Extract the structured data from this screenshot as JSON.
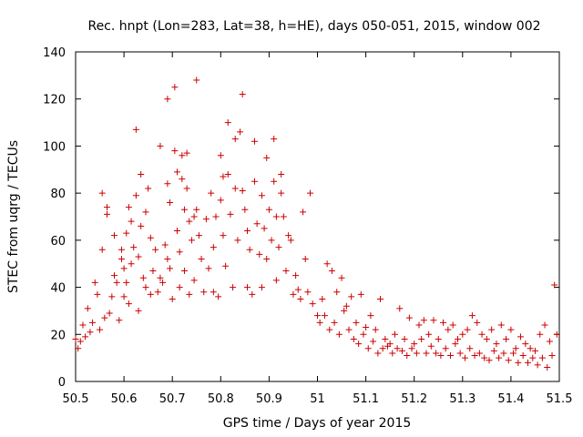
{
  "chart_data": {
    "type": "scatter",
    "title": "Rec. hnpt (Lon=283, Lat=38, h=HE), days 050-051, 2015, window 002",
    "xlabel": "GPS time / Days of year 2015",
    "ylabel": "STEC from uqrg / TECUs",
    "xlim": [
      50.5,
      51.5
    ],
    "ylim": [
      0,
      140
    ],
    "x_ticks": [
      50.5,
      50.6,
      50.7,
      50.8,
      50.9,
      51.0,
      51.1,
      51.2,
      51.3,
      51.4,
      51.5
    ],
    "x_tick_labels": [
      "50.5",
      "50.6",
      "50.7",
      "50.8",
      "50.9",
      "51",
      "51.1",
      "51.2",
      "51.3",
      "51.4",
      "51.5"
    ],
    "y_ticks": [
      0,
      20,
      40,
      60,
      80,
      100,
      120,
      140
    ],
    "y_tick_labels": [
      "0",
      "20",
      "40",
      "60",
      "80",
      "100",
      "120",
      "140"
    ],
    "marker": "plus",
    "color": "#cc0000",
    "series": [
      {
        "name": "STEC",
        "points": [
          [
            50.5,
            18
          ],
          [
            50.505,
            14
          ],
          [
            50.51,
            17
          ],
          [
            50.515,
            24
          ],
          [
            50.52,
            19
          ],
          [
            50.525,
            31
          ],
          [
            50.53,
            21
          ],
          [
            50.535,
            25
          ],
          [
            50.54,
            42
          ],
          [
            50.545,
            37
          ],
          [
            50.55,
            22
          ],
          [
            50.555,
            80
          ],
          [
            50.555,
            56
          ],
          [
            50.56,
            27
          ],
          [
            50.565,
            74
          ],
          [
            50.565,
            71
          ],
          [
            50.57,
            29
          ],
          [
            50.575,
            36
          ],
          [
            50.58,
            62
          ],
          [
            50.58,
            45
          ],
          [
            50.585,
            42
          ],
          [
            50.59,
            26
          ],
          [
            50.595,
            56
          ],
          [
            50.595,
            52
          ],
          [
            50.6,
            48
          ],
          [
            50.6,
            36
          ],
          [
            50.605,
            63
          ],
          [
            50.605,
            42
          ],
          [
            50.61,
            74
          ],
          [
            50.61,
            33
          ],
          [
            50.615,
            68
          ],
          [
            50.615,
            50
          ],
          [
            50.62,
            57
          ],
          [
            50.625,
            107
          ],
          [
            50.625,
            79
          ],
          [
            50.63,
            53
          ],
          [
            50.63,
            30
          ],
          [
            50.635,
            88
          ],
          [
            50.635,
            66
          ],
          [
            50.64,
            44
          ],
          [
            50.645,
            72
          ],
          [
            50.645,
            40
          ],
          [
            50.65,
            82
          ],
          [
            50.655,
            61
          ],
          [
            50.655,
            37
          ],
          [
            50.66,
            47
          ],
          [
            50.665,
            56
          ],
          [
            50.67,
            38
          ],
          [
            50.675,
            100
          ],
          [
            50.675,
            44
          ],
          [
            50.68,
            42
          ],
          [
            50.685,
            58
          ],
          [
            50.69,
            120
          ],
          [
            50.69,
            84
          ],
          [
            50.69,
            52
          ],
          [
            50.695,
            76
          ],
          [
            50.695,
            48
          ],
          [
            50.7,
            35
          ],
          [
            50.705,
            125
          ],
          [
            50.705,
            98
          ],
          [
            50.71,
            89
          ],
          [
            50.71,
            64
          ],
          [
            50.715,
            55
          ],
          [
            50.715,
            40
          ],
          [
            50.72,
            96
          ],
          [
            50.72,
            86
          ],
          [
            50.725,
            73
          ],
          [
            50.725,
            47
          ],
          [
            50.73,
            97
          ],
          [
            50.73,
            82
          ],
          [
            50.735,
            68
          ],
          [
            50.735,
            37
          ],
          [
            50.74,
            60
          ],
          [
            50.745,
            70
          ],
          [
            50.745,
            43
          ],
          [
            50.75,
            128
          ],
          [
            50.75,
            73
          ],
          [
            50.755,
            62
          ],
          [
            50.76,
            52
          ],
          [
            50.765,
            38
          ],
          [
            50.77,
            69
          ],
          [
            50.775,
            48
          ],
          [
            50.78,
            80
          ],
          [
            50.785,
            57
          ],
          [
            50.785,
            38
          ],
          [
            50.79,
            70
          ],
          [
            50.795,
            36
          ],
          [
            50.8,
            96
          ],
          [
            50.8,
            77
          ],
          [
            50.805,
            87
          ],
          [
            50.805,
            62
          ],
          [
            50.81,
            49
          ],
          [
            50.815,
            110
          ],
          [
            50.815,
            88
          ],
          [
            50.82,
            71
          ],
          [
            50.825,
            40
          ],
          [
            50.83,
            103
          ],
          [
            50.83,
            82
          ],
          [
            50.835,
            60
          ],
          [
            50.84,
            106
          ],
          [
            50.845,
            122
          ],
          [
            50.845,
            81
          ],
          [
            50.85,
            73
          ],
          [
            50.855,
            64
          ],
          [
            50.855,
            40
          ],
          [
            50.86,
            56
          ],
          [
            50.865,
            37
          ],
          [
            50.87,
            102
          ],
          [
            50.87,
            85
          ],
          [
            50.875,
            67
          ],
          [
            50.88,
            54
          ],
          [
            50.885,
            79
          ],
          [
            50.885,
            40
          ],
          [
            50.89,
            65
          ],
          [
            50.895,
            95
          ],
          [
            50.895,
            52
          ],
          [
            50.9,
            73
          ],
          [
            50.905,
            60
          ],
          [
            50.91,
            103
          ],
          [
            50.91,
            85
          ],
          [
            50.915,
            70
          ],
          [
            50.915,
            43
          ],
          [
            50.92,
            57
          ],
          [
            50.925,
            88
          ],
          [
            50.925,
            80
          ],
          [
            50.93,
            70
          ],
          [
            50.935,
            47
          ],
          [
            50.94,
            62
          ],
          [
            50.945,
            60
          ],
          [
            50.95,
            37
          ],
          [
            50.955,
            45
          ],
          [
            50.96,
            39
          ],
          [
            50.965,
            35
          ],
          [
            50.97,
            72
          ],
          [
            50.975,
            52
          ],
          [
            50.98,
            38
          ],
          [
            50.985,
            80
          ],
          [
            50.99,
            33
          ],
          [
            51.0,
            28
          ],
          [
            51.005,
            25
          ],
          [
            51.01,
            35
          ],
          [
            51.015,
            28
          ],
          [
            51.02,
            50
          ],
          [
            51.025,
            22
          ],
          [
            51.03,
            47
          ],
          [
            51.035,
            25
          ],
          [
            51.04,
            38
          ],
          [
            51.045,
            20
          ],
          [
            51.05,
            44
          ],
          [
            51.055,
            30
          ],
          [
            51.06,
            32
          ],
          [
            51.065,
            22
          ],
          [
            51.07,
            36
          ],
          [
            51.075,
            18
          ],
          [
            51.08,
            25
          ],
          [
            51.085,
            16
          ],
          [
            51.09,
            37
          ],
          [
            51.095,
            20
          ],
          [
            51.1,
            23
          ],
          [
            51.105,
            14
          ],
          [
            51.11,
            28
          ],
          [
            51.115,
            17
          ],
          [
            51.12,
            22
          ],
          [
            51.125,
            12
          ],
          [
            51.13,
            35
          ],
          [
            51.135,
            14
          ],
          [
            51.14,
            18
          ],
          [
            51.145,
            15
          ],
          [
            51.15,
            16
          ],
          [
            51.155,
            12
          ],
          [
            51.16,
            20
          ],
          [
            51.165,
            14
          ],
          [
            51.17,
            31
          ],
          [
            51.175,
            13
          ],
          [
            51.18,
            18
          ],
          [
            51.185,
            11
          ],
          [
            51.19,
            27
          ],
          [
            51.195,
            14
          ],
          [
            51.2,
            16
          ],
          [
            51.205,
            12
          ],
          [
            51.21,
            24
          ],
          [
            51.215,
            18
          ],
          [
            51.22,
            26
          ],
          [
            51.225,
            12
          ],
          [
            51.23,
            20
          ],
          [
            51.235,
            15
          ],
          [
            51.24,
            26
          ],
          [
            51.245,
            12
          ],
          [
            51.25,
            18
          ],
          [
            51.255,
            11
          ],
          [
            51.26,
            25
          ],
          [
            51.265,
            14
          ],
          [
            51.27,
            22
          ],
          [
            51.275,
            11
          ],
          [
            51.28,
            24
          ],
          [
            51.285,
            16
          ],
          [
            51.29,
            18
          ],
          [
            51.295,
            12
          ],
          [
            51.3,
            20
          ],
          [
            51.305,
            10
          ],
          [
            51.31,
            22
          ],
          [
            51.315,
            14
          ],
          [
            51.32,
            28
          ],
          [
            51.325,
            11
          ],
          [
            51.33,
            25
          ],
          [
            51.335,
            12
          ],
          [
            51.34,
            20
          ],
          [
            51.345,
            10
          ],
          [
            51.35,
            18
          ],
          [
            51.355,
            9
          ],
          [
            51.36,
            22
          ],
          [
            51.365,
            13
          ],
          [
            51.37,
            16
          ],
          [
            51.375,
            10
          ],
          [
            51.38,
            24
          ],
          [
            51.385,
            12
          ],
          [
            51.39,
            18
          ],
          [
            51.395,
            9
          ],
          [
            51.4,
            22
          ],
          [
            51.405,
            12
          ],
          [
            51.41,
            14
          ],
          [
            51.415,
            8
          ],
          [
            51.42,
            19
          ],
          [
            51.425,
            11
          ],
          [
            51.43,
            16
          ],
          [
            51.435,
            8
          ],
          [
            51.44,
            14
          ],
          [
            51.445,
            10
          ],
          [
            51.45,
            13
          ],
          [
            51.455,
            7
          ],
          [
            51.46,
            20
          ],
          [
            51.465,
            10
          ],
          [
            51.47,
            24
          ],
          [
            51.475,
            6
          ],
          [
            51.48,
            17
          ],
          [
            51.485,
            11
          ],
          [
            51.49,
            41
          ],
          [
            51.495,
            20
          ]
        ]
      }
    ]
  }
}
